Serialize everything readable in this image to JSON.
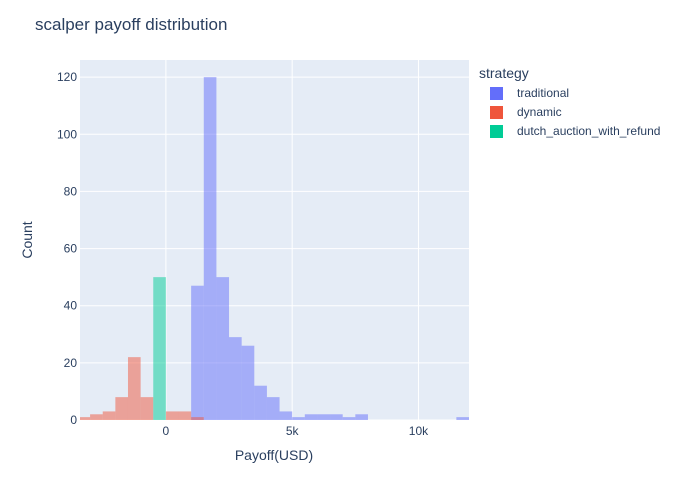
{
  "chart_data": {
    "type": "histogram",
    "title": "scalper payoff distribution",
    "xlabel": "Payoff(USD)",
    "ylabel": "Count",
    "xlim": [
      -3400,
      12000
    ],
    "ylim": [
      0,
      126
    ],
    "x_ticks": [
      {
        "value": 0,
        "label": "0"
      },
      {
        "value": 5000,
        "label": "5k"
      },
      {
        "value": 10000,
        "label": "10k"
      }
    ],
    "y_ticks": [
      {
        "value": 0,
        "label": "0"
      },
      {
        "value": 20,
        "label": "20"
      },
      {
        "value": 40,
        "label": "40"
      },
      {
        "value": 60,
        "label": "60"
      },
      {
        "value": 80,
        "label": "80"
      },
      {
        "value": 100,
        "label": "100"
      },
      {
        "value": 120,
        "label": "120"
      }
    ],
    "bin_width": 500,
    "barmode": "overlay",
    "opacity": 0.5,
    "grid": true,
    "legend_title": "strategy",
    "legend_position": "right",
    "series": [
      {
        "name": "traditional",
        "color": "#636efa",
        "bins": [
          {
            "x0": 1000,
            "x1": 1500,
            "count": 47
          },
          {
            "x0": 1500,
            "x1": 2000,
            "count": 120
          },
          {
            "x0": 2000,
            "x1": 2500,
            "count": 50
          },
          {
            "x0": 2500,
            "x1": 3000,
            "count": 29
          },
          {
            "x0": 3000,
            "x1": 3500,
            "count": 26
          },
          {
            "x0": 3500,
            "x1": 4000,
            "count": 12
          },
          {
            "x0": 4000,
            "x1": 4500,
            "count": 8
          },
          {
            "x0": 4500,
            "x1": 5000,
            "count": 3
          },
          {
            "x0": 5000,
            "x1": 5500,
            "count": 1
          },
          {
            "x0": 5500,
            "x1": 6000,
            "count": 2
          },
          {
            "x0": 6000,
            "x1": 6500,
            "count": 2
          },
          {
            "x0": 6500,
            "x1": 7000,
            "count": 2
          },
          {
            "x0": 7000,
            "x1": 7500,
            "count": 1
          },
          {
            "x0": 7500,
            "x1": 8000,
            "count": 2
          },
          {
            "x0": 11500,
            "x1": 12000,
            "count": 1
          }
        ]
      },
      {
        "name": "dynamic",
        "color": "#ef553b",
        "bins": [
          {
            "x0": -3500,
            "x1": -3000,
            "count": 1
          },
          {
            "x0": -3000,
            "x1": -2500,
            "count": 2
          },
          {
            "x0": -2500,
            "x1": -2000,
            "count": 3
          },
          {
            "x0": -2000,
            "x1": -1500,
            "count": 8
          },
          {
            "x0": -1500,
            "x1": -1000,
            "count": 22
          },
          {
            "x0": -1000,
            "x1": -500,
            "count": 8
          },
          {
            "x0": 0,
            "x1": 500,
            "count": 3
          },
          {
            "x0": 500,
            "x1": 1000,
            "count": 3
          },
          {
            "x0": 1000,
            "x1": 1500,
            "count": 1
          }
        ]
      },
      {
        "name": "dutch_auction_with_refund",
        "color": "#00cc96",
        "bins": [
          {
            "x0": -500,
            "x1": 0,
            "count": 50
          }
        ]
      }
    ]
  }
}
